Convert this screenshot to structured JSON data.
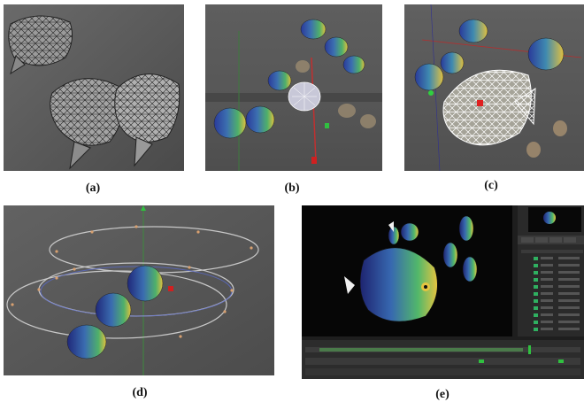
{
  "captions": {
    "a": "(a)",
    "b": "(b)",
    "c": "(c)",
    "d": "(d)",
    "e": "(e)"
  },
  "panels": [
    {
      "id": "a",
      "content": "wireframe-fish-meshes"
    },
    {
      "id": "b",
      "content": "textured-fish-school-3d-viewport"
    },
    {
      "id": "c",
      "content": "selected-fish-wireframe-overlay"
    },
    {
      "id": "d",
      "content": "fish-on-elliptical-motion-paths"
    },
    {
      "id": "e",
      "content": "animation-editor-render-view"
    }
  ],
  "colors": {
    "viewport_gray": "#5a5a5a",
    "editor_dark": "#1e1e1e",
    "fish_blue": "#2a3a9a",
    "fish_green": "#4fb06a",
    "fish_yellow": "#e0c040"
  }
}
